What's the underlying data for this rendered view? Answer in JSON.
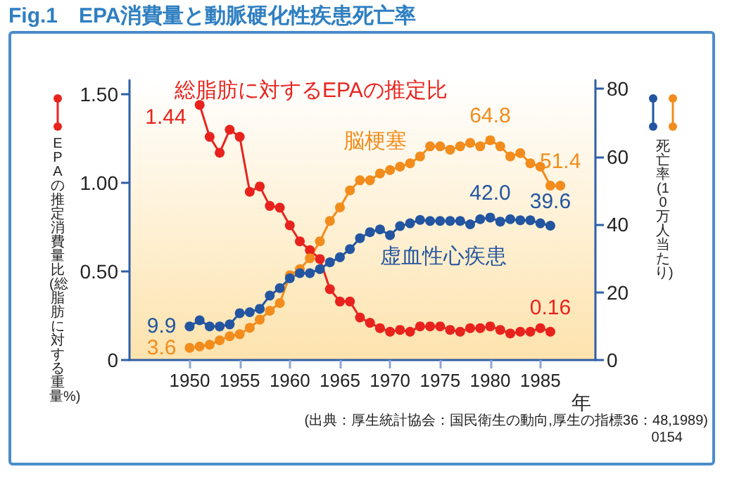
{
  "chart_data": {
    "type": "line",
    "title": "Fig.1　EPA消費量と動脈硬化性疾患死亡率",
    "xlabel": "年",
    "ylabel": "EPAの推定消費量比(総脂肪に対する重量%)",
    "y2label": "死亡率(10万人当たり)",
    "x": [
      1950,
      1951,
      1952,
      1953,
      1954,
      1955,
      1956,
      1957,
      1958,
      1959,
      1960,
      1961,
      1962,
      1963,
      1964,
      1965,
      1966,
      1967,
      1968,
      1969,
      1970,
      1971,
      1972,
      1973,
      1974,
      1975,
      1976,
      1977,
      1978,
      1979,
      1980,
      1981,
      1982,
      1983,
      1984,
      1985,
      1986,
      1987
    ],
    "xlim": [
      1944,
      1990.5
    ],
    "xticks": [
      1950,
      1955,
      1960,
      1965,
      1970,
      1975,
      1980,
      1985
    ],
    "ylim": [
      0,
      1.58
    ],
    "yticks": [
      0,
      {
        "value": 0.5,
        "label": "0.50"
      },
      {
        "value": 1,
        "label": "1.00"
      },
      {
        "value": 1.5,
        "label": "1.50"
      }
    ],
    "y2lim": [
      0,
      82.5
    ],
    "y2ticks": [
      0,
      20,
      40,
      60,
      80
    ],
    "marker": "circle",
    "grid": false,
    "legend": false,
    "series": [
      {
        "name": "総脂肪に対するEPAの推定比",
        "color": "#e8231e",
        "values": [
          null,
          1.44,
          1.26,
          1.17,
          1.3,
          1.26,
          0.95,
          0.98,
          0.87,
          0.86,
          0.76,
          0.67,
          0.62,
          0.57,
          0.4,
          0.33,
          0.33,
          0.24,
          0.21,
          0.18,
          0.16,
          0.17,
          0.16,
          0.19,
          0.19,
          0.19,
          0.17,
          0.16,
          0.18,
          0.18,
          0.19,
          0.17,
          0.15,
          0.16,
          0.16,
          0.18,
          0.16,
          null
        ],
        "value_labels": [
          null,
          "1.44",
          null,
          null,
          null,
          null,
          null,
          null,
          null,
          null,
          null,
          null,
          null,
          null,
          null,
          null,
          null,
          null,
          null,
          null,
          null,
          null,
          null,
          null,
          null,
          null,
          null,
          null,
          null,
          null,
          null,
          null,
          null,
          null,
          null,
          null,
          "0.16",
          null
        ]
      },
      {
        "name": "脳梗塞",
        "color": "#f28c1c",
        "axis": "y2",
        "values": [
          3.6,
          4.0,
          4.5,
          5.8,
          7.0,
          7.6,
          9.5,
          11.9,
          14.5,
          16.8,
          25,
          26.8,
          30,
          35,
          41,
          45,
          50,
          53,
          53,
          55,
          56,
          57,
          58,
          60,
          63,
          63,
          62,
          63,
          64,
          63,
          64.8,
          63,
          60,
          61,
          58,
          57,
          51.4,
          51.4
        ],
        "value_labels": [
          "3.6",
          null,
          null,
          null,
          null,
          null,
          null,
          null,
          null,
          null,
          null,
          null,
          null,
          null,
          null,
          null,
          null,
          null,
          null,
          null,
          null,
          null,
          null,
          null,
          null,
          null,
          null,
          null,
          null,
          null,
          "64.8",
          null,
          null,
          null,
          null,
          null,
          null,
          "51.4"
        ]
      },
      {
        "name": "虚血性心疾患",
        "color": "#2355a0",
        "axis": "y2",
        "values": [
          9.9,
          11.7,
          9.9,
          9.9,
          10.5,
          13.8,
          14.1,
          15.1,
          19,
          21.2,
          24.1,
          25.6,
          25.6,
          26.8,
          28.8,
          30.3,
          32.7,
          35.9,
          37.7,
          38.5,
          36.8,
          39.5,
          40.3,
          41.3,
          41,
          41,
          41,
          41,
          40,
          41.5,
          42.0,
          40.8,
          41.5,
          41.2,
          41.2,
          40.3,
          39.6,
          null
        ],
        "value_labels": [
          "9.9",
          null,
          null,
          null,
          null,
          null,
          null,
          null,
          null,
          null,
          null,
          null,
          null,
          null,
          null,
          null,
          null,
          null,
          null,
          null,
          null,
          null,
          null,
          null,
          null,
          null,
          null,
          null,
          null,
          null,
          "42.0",
          null,
          null,
          null,
          null,
          null,
          "39.6",
          null
        ]
      }
    ],
    "annotations": [
      "(出典：厚生統計協会：国民衛生の動向,厚生の指標36：48,1989)",
      "0154"
    ]
  }
}
